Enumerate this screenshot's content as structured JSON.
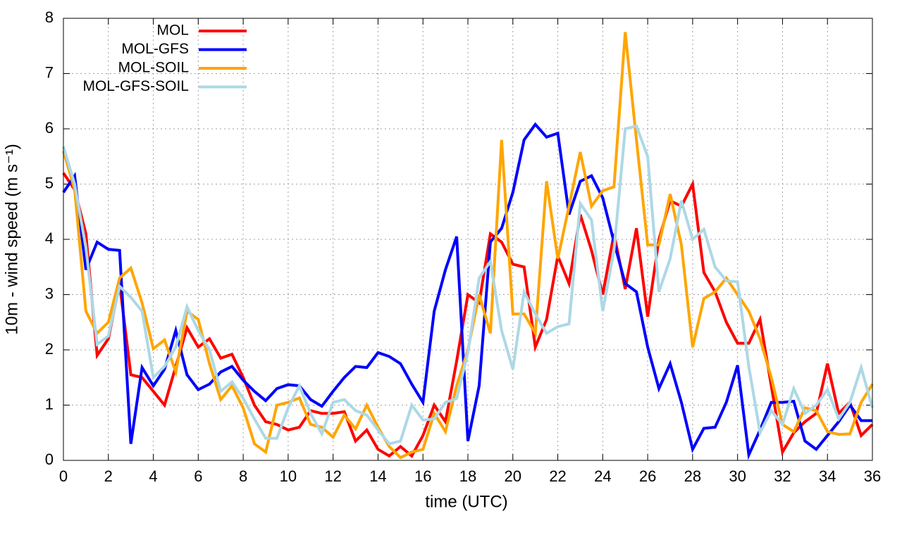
{
  "chart_data": {
    "type": "line",
    "xlabel": "time (UTC)",
    "ylabel": "10m - wind speed  (m s⁻¹)",
    "x": [
      0,
      0.5,
      1,
      1.5,
      2,
      2.5,
      3,
      3.5,
      4,
      4.5,
      5,
      5.5,
      6,
      6.5,
      7,
      7.5,
      8,
      8.5,
      9,
      9.5,
      10,
      10.5,
      11,
      11.5,
      12,
      12.5,
      13,
      13.5,
      14,
      14.5,
      15,
      15.5,
      16,
      16.5,
      17,
      17.5,
      18,
      18.5,
      19,
      19.5,
      20,
      20.5,
      21,
      21.5,
      22,
      22.5,
      23,
      23.5,
      24,
      24.5,
      25,
      25.5,
      26,
      26.5,
      27,
      27.5,
      28,
      28.5,
      29,
      29.5,
      30,
      30.5,
      31,
      31.5,
      32,
      32.5,
      33,
      33.5,
      34,
      34.5,
      35,
      35.5,
      36
    ],
    "series": [
      {
        "name": "MOL",
        "color": "#ff0000",
        "values": [
          5.2,
          4.9,
          4.1,
          1.9,
          2.2,
          3.2,
          1.55,
          1.5,
          1.25,
          1.0,
          1.7,
          2.4,
          2.05,
          2.2,
          1.85,
          1.92,
          1.5,
          1.0,
          0.7,
          0.65,
          0.55,
          0.6,
          0.9,
          0.85,
          0.85,
          0.88,
          0.35,
          0.55,
          0.2,
          0.08,
          0.25,
          0.08,
          0.45,
          1.0,
          0.7,
          1.8,
          3.0,
          2.85,
          4.1,
          3.95,
          3.55,
          3.5,
          2.05,
          2.55,
          3.7,
          3.2,
          4.45,
          3.8,
          3.0,
          4.1,
          3.1,
          4.2,
          2.6,
          4.0,
          4.7,
          4.6,
          5.0,
          3.4,
          3.05,
          2.5,
          2.12,
          2.12,
          2.55,
          1.35,
          0.15,
          0.5,
          0.7,
          0.85,
          1.75,
          0.85,
          1.05,
          0.45,
          0.65
        ]
      },
      {
        "name": "MOL-GFS",
        "color": "#0000ff",
        "values": [
          4.85,
          5.15,
          3.45,
          3.95,
          3.82,
          3.8,
          0.3,
          1.68,
          1.35,
          1.65,
          2.35,
          1.55,
          1.28,
          1.38,
          1.6,
          1.7,
          1.45,
          1.25,
          1.08,
          1.3,
          1.37,
          1.35,
          1.1,
          0.98,
          1.25,
          1.5,
          1.7,
          1.68,
          1.95,
          1.88,
          1.75,
          1.38,
          1.05,
          2.7,
          3.45,
          4.05,
          0.35,
          1.35,
          3.95,
          4.2,
          4.85,
          5.8,
          6.08,
          5.85,
          5.92,
          4.45,
          5.05,
          5.15,
          4.75,
          3.95,
          3.2,
          3.05,
          2.05,
          1.3,
          1.75,
          1.05,
          0.2,
          0.58,
          0.6,
          1.05,
          1.72,
          0.1,
          0.55,
          1.05,
          1.05,
          1.07,
          0.35,
          0.2,
          0.45,
          0.7,
          1.0,
          0.72,
          0.72
        ]
      },
      {
        "name": "MOL-SOIL",
        "color": "#ffa500",
        "values": [
          5.6,
          4.9,
          2.7,
          2.3,
          2.5,
          3.3,
          3.48,
          2.85,
          2.02,
          2.18,
          1.6,
          2.7,
          2.55,
          1.75,
          1.1,
          1.35,
          0.95,
          0.3,
          0.15,
          1.0,
          1.05,
          1.13,
          0.65,
          0.6,
          0.42,
          0.82,
          0.57,
          1.0,
          0.6,
          0.25,
          0.05,
          0.15,
          0.2,
          0.85,
          0.52,
          1.35,
          2.0,
          3.0,
          2.3,
          5.8,
          2.65,
          2.65,
          2.3,
          5.05,
          3.65,
          4.6,
          5.58,
          4.6,
          4.88,
          4.95,
          7.75,
          5.8,
          3.9,
          3.9,
          4.82,
          3.9,
          2.05,
          2.93,
          3.05,
          3.3,
          3.0,
          2.7,
          2.2,
          1.5,
          0.65,
          0.52,
          0.95,
          0.9,
          0.52,
          0.47,
          0.48,
          1.05,
          1.38
        ]
      },
      {
        "name": "MOL-GFS-SOIL",
        "color": "#add8e6",
        "values": [
          5.68,
          5.0,
          3.85,
          2.1,
          2.25,
          3.15,
          2.95,
          2.7,
          1.5,
          1.7,
          2.05,
          2.78,
          2.35,
          2.0,
          1.25,
          1.42,
          1.12,
          0.75,
          0.4,
          0.4,
          0.95,
          1.35,
          0.85,
          0.48,
          1.05,
          1.1,
          0.9,
          0.82,
          0.55,
          0.3,
          0.35,
          1.0,
          0.73,
          0.75,
          1.05,
          1.12,
          1.95,
          3.3,
          3.6,
          2.35,
          1.65,
          3.05,
          2.65,
          2.3,
          2.42,
          2.47,
          4.65,
          4.35,
          2.7,
          3.8,
          6.0,
          6.05,
          5.5,
          3.05,
          3.65,
          4.7,
          4.0,
          4.18,
          3.5,
          3.25,
          3.23,
          1.7,
          0.5,
          0.9,
          0.65,
          1.3,
          0.85,
          1.0,
          1.28,
          0.75,
          1.05,
          1.68,
          0.95
        ]
      }
    ],
    "xlim": [
      0,
      36
    ],
    "xticks": [
      0,
      2,
      4,
      6,
      8,
      10,
      12,
      14,
      16,
      18,
      20,
      22,
      24,
      26,
      28,
      30,
      32,
      34,
      36
    ],
    "ylim": [
      0,
      8
    ],
    "yticks": [
      0,
      1,
      2,
      3,
      4,
      5,
      6,
      7,
      8
    ],
    "grid": true,
    "legend": "top-left"
  }
}
